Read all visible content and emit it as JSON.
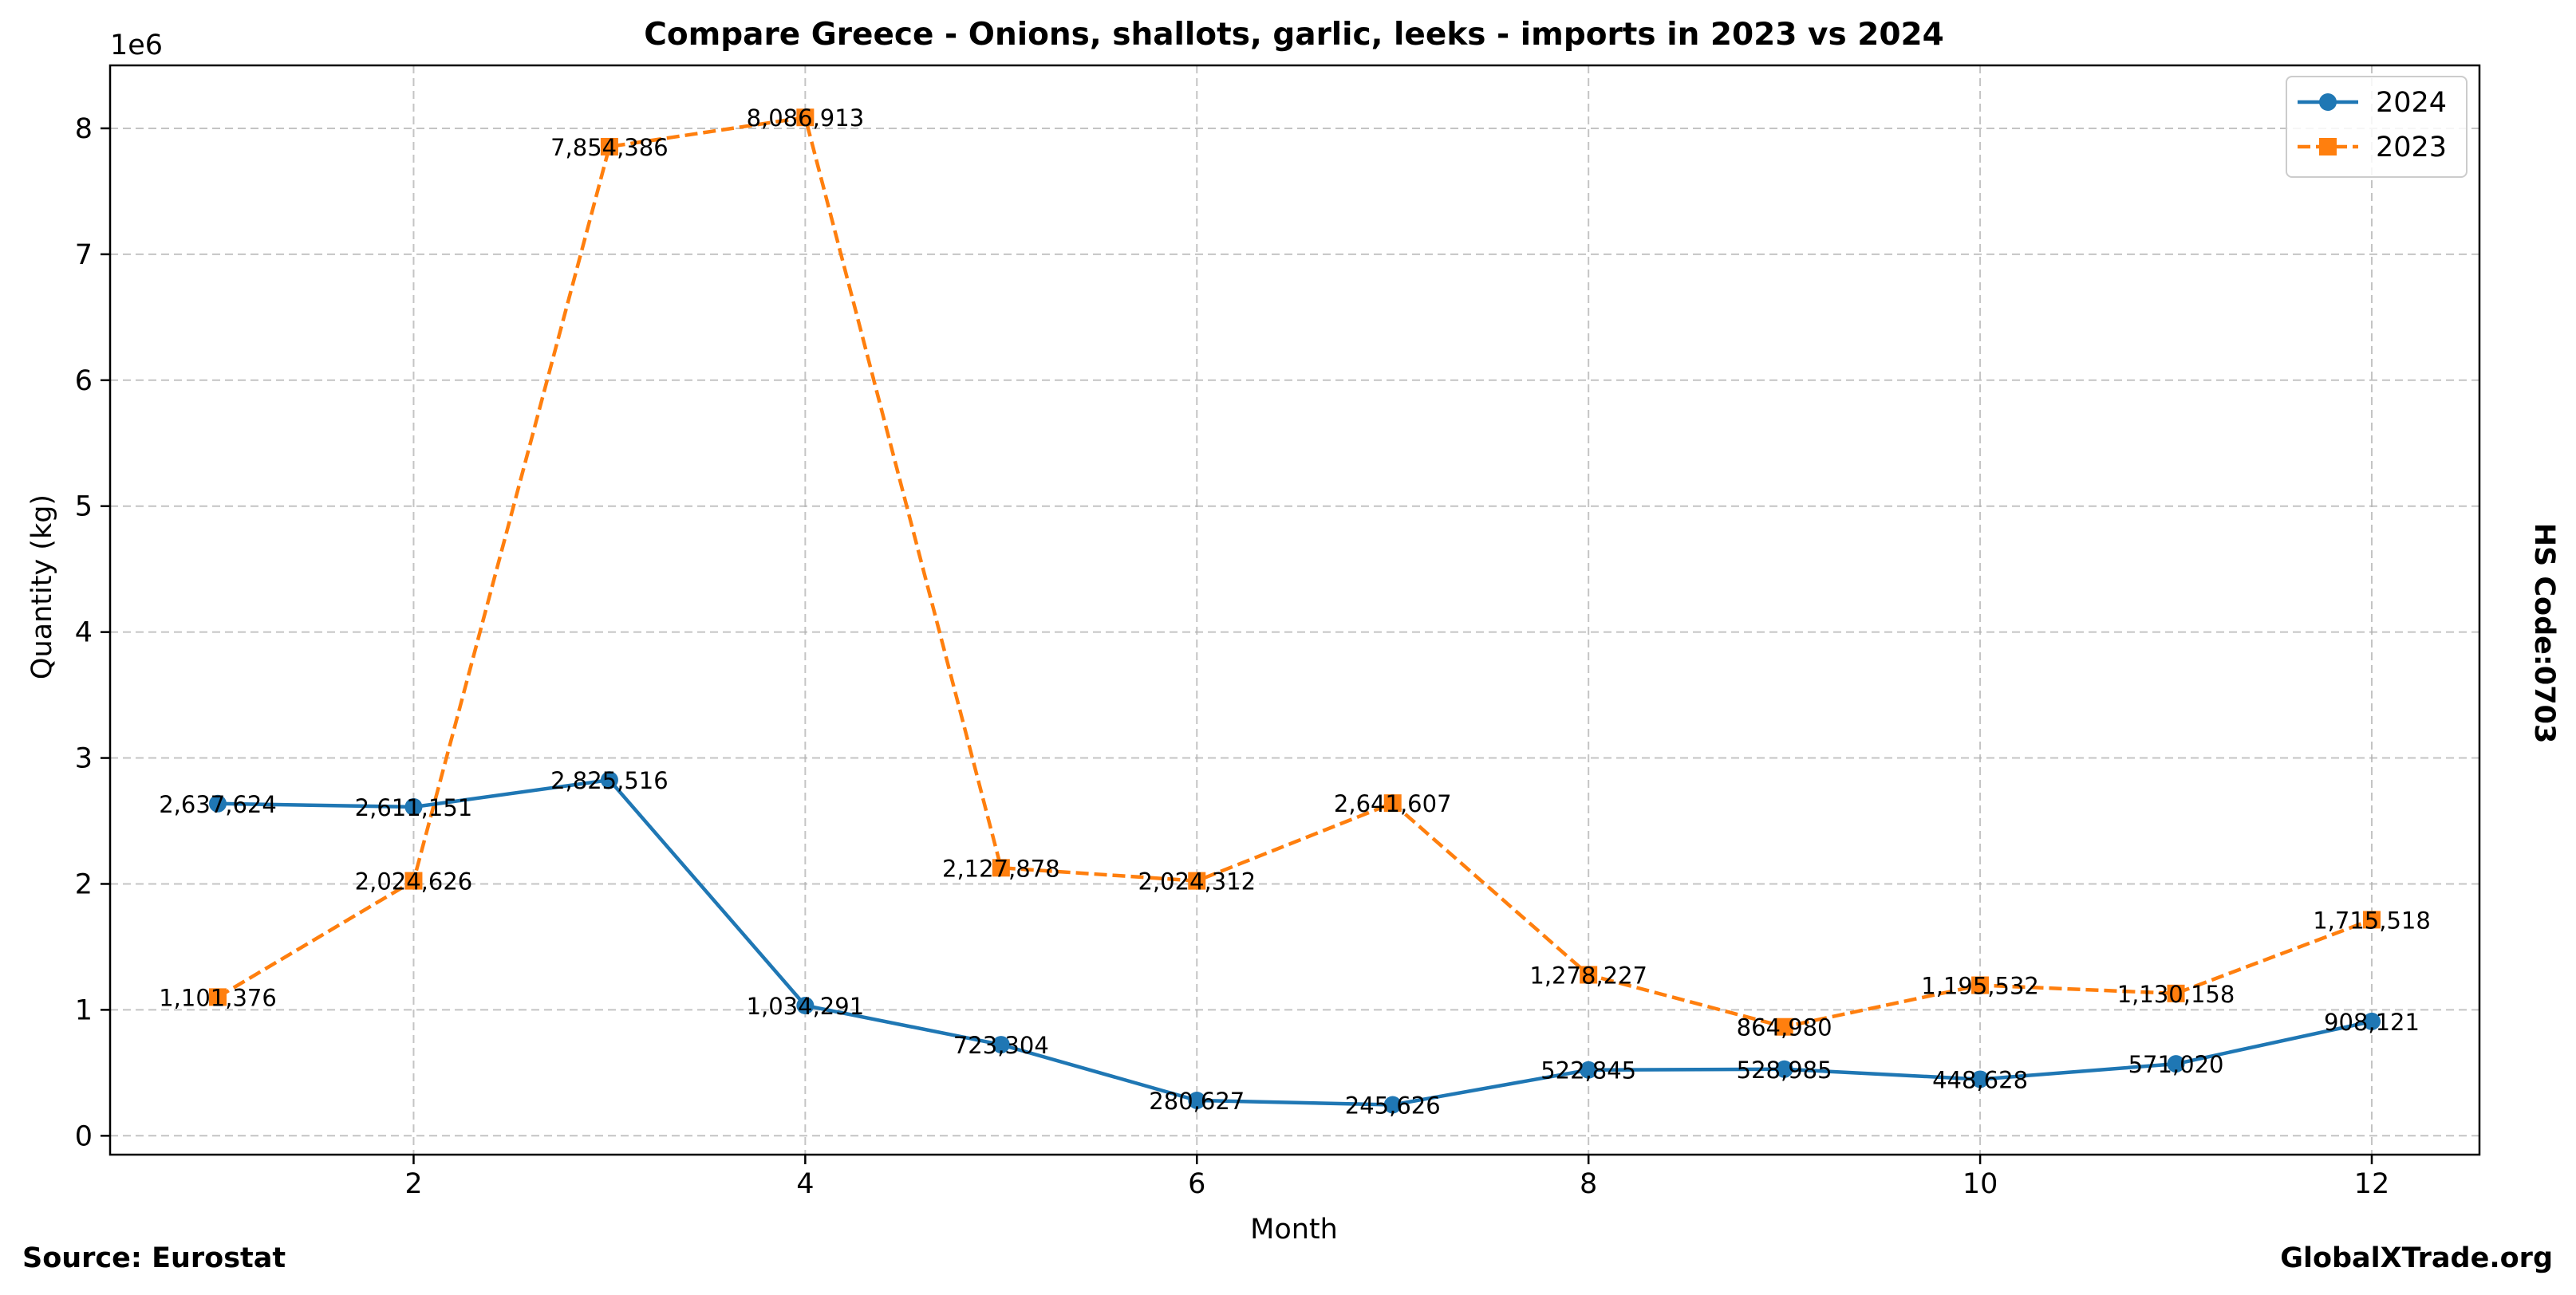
{
  "chart_data": {
    "type": "line",
    "title": "Compare Greece - Onions, shallots, garlic, leeks - imports in 2023 vs 2024",
    "xlabel": "Month",
    "ylabel": "Quantity (kg)",
    "y_offset_label": "1e6",
    "xlim": [
      0.45,
      12.55
    ],
    "ylim": [
      -150000,
      8500000
    ],
    "x_ticks": [
      2,
      4,
      6,
      8,
      10,
      12
    ],
    "y_ticks": [
      0,
      1,
      2,
      3,
      4,
      5,
      6,
      7,
      8
    ],
    "y_tick_scale": 1000000,
    "grid": true,
    "legend_position": "top-right",
    "x": [
      1,
      2,
      3,
      4,
      5,
      6,
      7,
      8,
      9,
      10,
      11,
      12
    ],
    "series": [
      {
        "name": "2024",
        "color": "#1f77b4",
        "marker": "circle",
        "line_style": "solid",
        "values": [
          2637624,
          2611151,
          2825516,
          1034291,
          723304,
          280627,
          245626,
          522845,
          528985,
          448628,
          571020,
          908121
        ],
        "labels": [
          "2,637,624",
          "2,611,151",
          "2,825,516",
          "1,034,291",
          "723,304",
          "280,627",
          "245,626",
          "522,845",
          "528,985",
          "448,628",
          "571,020",
          "908,121"
        ]
      },
      {
        "name": "2023",
        "color": "#ff7f0e",
        "marker": "square",
        "line_style": "dashed",
        "values": [
          1101376,
          2024626,
          7854386,
          8086913,
          2127878,
          2024312,
          2641607,
          1278227,
          864980,
          1195532,
          1130158,
          1715518
        ],
        "labels": [
          "1,101,376",
          "2,024,626",
          "7,854,386",
          "8,086,913",
          "2,127,878",
          "2,024,312",
          "2,641,607",
          "1,278,227",
          "864,980",
          "1,195,532",
          "1,130,158",
          "1,715,518"
        ]
      }
    ]
  },
  "annotations": {
    "side_label": "HS Code:0703",
    "source": "Source: Eurostat",
    "site": "GlobalXTrade.org"
  }
}
